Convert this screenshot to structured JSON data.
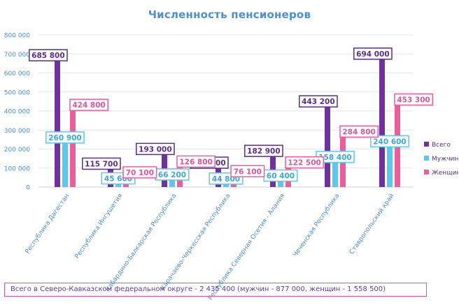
{
  "chart_data": {
    "type": "bar",
    "title": "Численность пенсионеров",
    "ylim": [
      0,
      800000
    ],
    "y_ticks": [
      "0",
      "100 000",
      "200 000",
      "300 000",
      "400 000",
      "500 000",
      "600 000",
      "700 000",
      "800 000"
    ],
    "y_tick_values": [
      0,
      100000,
      200000,
      300000,
      400000,
      500000,
      600000,
      700000,
      800000
    ],
    "categories": [
      "Республика Дагестан",
      "Республика Ингушетия",
      "Кабардино-Балкарская Республика",
      "Карачаево-Черкесская Республика",
      "Республика Северная Осетия - Алания",
      "Чеченская Республика",
      "Ставропольский край"
    ],
    "series": [
      {
        "name": "Всего",
        "color": "#7030a0",
        "values": [
          685800,
          115700,
          193000,
          120800,
          182900,
          443200,
          694000
        ],
        "labels": [
          "685 800",
          "115 700",
          "193 000",
          "120 800",
          "182 900",
          "443 200",
          "694 000"
        ]
      },
      {
        "name": "Мужчины",
        "color": "#5ac8f0",
        "values": [
          260900,
          45600,
          66200,
          44800,
          60400,
          158400,
          240600
        ],
        "labels": [
          "260 900",
          "45 600",
          "66 200",
          "44 800",
          "60 400",
          "158 400",
          "240 600"
        ]
      },
      {
        "name": "Женщины",
        "color": "#ee5c9c",
        "values": [
          424800,
          70100,
          126800,
          76100,
          122500,
          284800,
          453300
        ],
        "labels": [
          "424 800",
          "70 100",
          "126 800",
          "76 100",
          "122 500",
          "284 800",
          "453 300"
        ]
      }
    ],
    "grid": true,
    "legend_position": "right"
  },
  "footer": {
    "text": "Всего в Северо-Кавказском федеральном округе - 2 435 400 (мужчин - 877 000, женщин - 1 558 500)"
  }
}
